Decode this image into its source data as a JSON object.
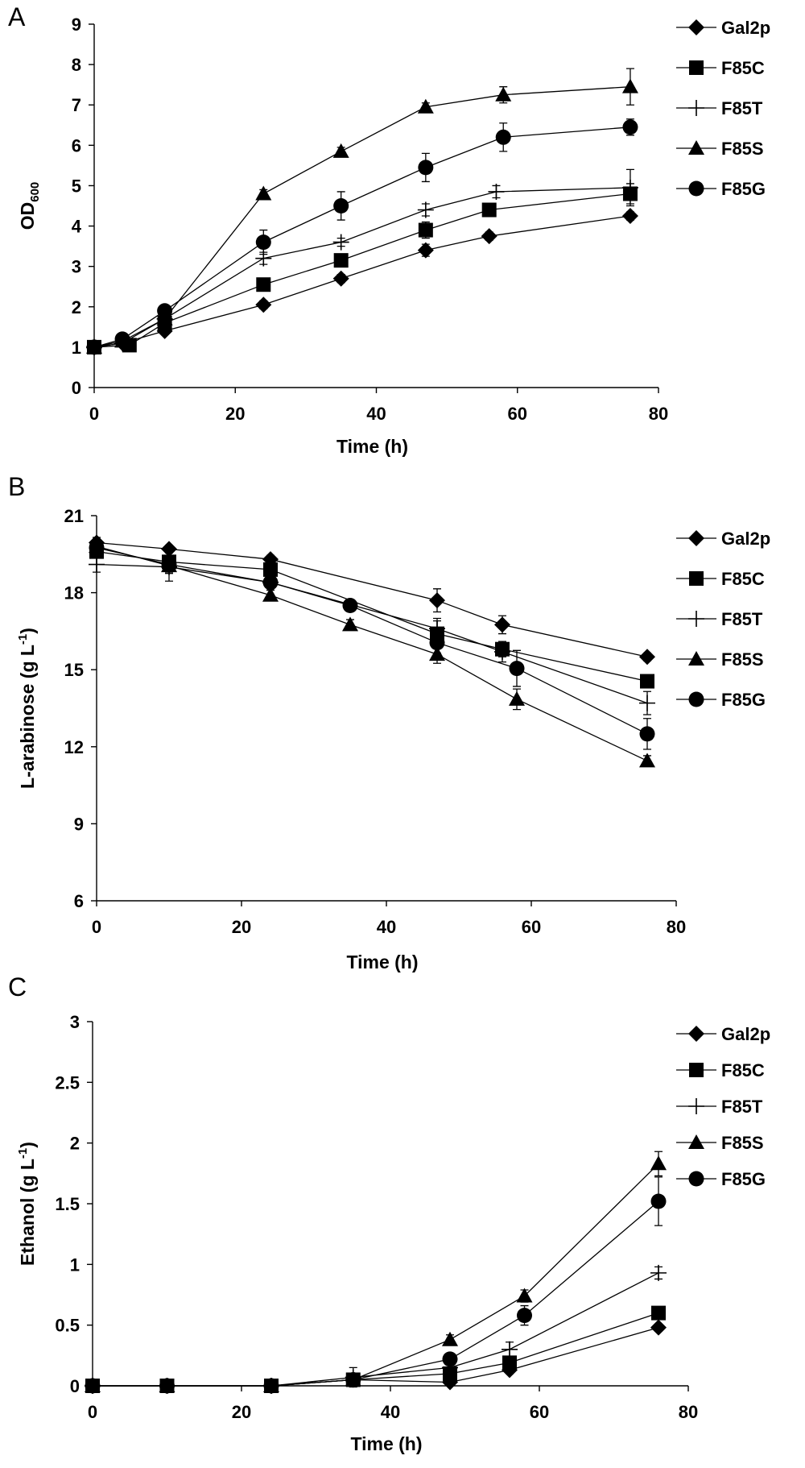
{
  "chart_data": [
    {
      "panel": "A",
      "type": "line",
      "title": "",
      "xlabel": "Time (h)",
      "ylabel": "OD",
      "ylabel_sub": "600",
      "xlim": [
        0,
        80
      ],
      "ylim": [
        0,
        9
      ],
      "xticks": [
        0,
        20,
        40,
        60,
        80
      ],
      "yticks": [
        0,
        1,
        2,
        3,
        4,
        5,
        6,
        7,
        8,
        9
      ],
      "legend": "top-right",
      "series": [
        {
          "name": "Gal2p",
          "marker": "diamond",
          "x": [
            0,
            4,
            10,
            24,
            35,
            47,
            56,
            76
          ],
          "y": [
            1.0,
            1.1,
            1.4,
            2.05,
            2.7,
            3.4,
            3.75,
            4.25
          ],
          "err": [
            0.05,
            0.05,
            0.05,
            0.1,
            0.1,
            0.15,
            0.1,
            0.1
          ]
        },
        {
          "name": "F85C",
          "marker": "square",
          "x": [
            0,
            5,
            10,
            24,
            35,
            47,
            56,
            76
          ],
          "y": [
            1.0,
            1.05,
            1.6,
            2.55,
            3.15,
            3.9,
            4.4,
            4.8
          ],
          "err": [
            0.05,
            0.05,
            0.1,
            0.1,
            0.15,
            0.2,
            0.15,
            0.25
          ]
        },
        {
          "name": "F85T",
          "marker": "plus",
          "x": [
            0,
            4,
            10,
            24,
            35,
            47,
            57,
            76
          ],
          "y": [
            1.0,
            1.1,
            1.7,
            3.2,
            3.6,
            4.4,
            4.85,
            4.95
          ],
          "err": [
            0.05,
            0.05,
            0.1,
            0.15,
            0.1,
            0.15,
            0.15,
            0.45
          ]
        },
        {
          "name": "F85S",
          "marker": "triangle",
          "x": [
            0,
            4,
            10,
            24,
            35,
            47,
            58,
            76
          ],
          "y": [
            1.0,
            1.15,
            1.7,
            4.8,
            5.85,
            6.95,
            7.25,
            7.45
          ],
          "err": [
            0.05,
            0.05,
            0.1,
            0.1,
            0.1,
            0.1,
            0.2,
            0.45
          ]
        },
        {
          "name": "F85G",
          "marker": "circle",
          "x": [
            0,
            4,
            10,
            24,
            35,
            47,
            58,
            76
          ],
          "y": [
            1.0,
            1.2,
            1.9,
            3.6,
            4.5,
            5.45,
            6.2,
            6.45
          ],
          "err": [
            0.05,
            0.05,
            0.1,
            0.3,
            0.35,
            0.35,
            0.35,
            0.2
          ]
        }
      ]
    },
    {
      "panel": "B",
      "type": "line",
      "title": "",
      "xlabel": "Time (h)",
      "ylabel": "L-arabinose (g L",
      "ylabel_sup": "-1",
      "ylabel_end": ")",
      "xlim": [
        0,
        80
      ],
      "ylim": [
        6,
        21
      ],
      "xticks": [
        0,
        20,
        40,
        60,
        80
      ],
      "yticks": [
        6,
        9,
        12,
        15,
        18,
        21
      ],
      "legend": "top-right",
      "series": [
        {
          "name": "Gal2p",
          "marker": "diamond",
          "x": [
            0,
            10,
            24,
            47,
            56,
            76
          ],
          "y": [
            19.95,
            19.7,
            19.3,
            17.7,
            16.75,
            15.5
          ],
          "err": [
            0.2,
            0.15,
            0.15,
            0.45,
            0.35,
            0.15
          ]
        },
        {
          "name": "F85C",
          "marker": "square",
          "x": [
            0,
            10,
            24,
            47,
            56,
            76
          ],
          "y": [
            19.6,
            19.2,
            18.9,
            16.4,
            15.8,
            14.55
          ],
          "err": [
            0.25,
            0.25,
            0.2,
            0.5,
            0.3,
            0.2
          ]
        },
        {
          "name": "F85T",
          "marker": "plus",
          "x": [
            0,
            10,
            24,
            47,
            56,
            76
          ],
          "y": [
            19.1,
            19.0,
            18.4,
            16.6,
            15.7,
            13.7
          ],
          "err": [
            0.3,
            0.55,
            0.2,
            0.4,
            0.4,
            0.45
          ]
        },
        {
          "name": "F85S",
          "marker": "triangle",
          "x": [
            0,
            10,
            24,
            35,
            47,
            58,
            76
          ],
          "y": [
            19.8,
            19.05,
            17.9,
            16.75,
            15.6,
            13.85,
            11.45
          ],
          "err": [
            0.25,
            0.3,
            0.2,
            0.2,
            0.35,
            0.4,
            0.2
          ]
        },
        {
          "name": "F85G",
          "marker": "circle",
          "x": [
            0,
            10,
            24,
            35,
            47,
            58,
            76
          ],
          "y": [
            19.75,
            19.1,
            18.4,
            17.5,
            16.05,
            15.05,
            12.5
          ],
          "err": [
            0.25,
            0.3,
            0.3,
            0.2,
            0.4,
            0.7,
            0.6
          ]
        }
      ]
    },
    {
      "panel": "C",
      "type": "line",
      "title": "",
      "xlabel": "Time (h)",
      "ylabel": "Ethanol (g L",
      "ylabel_sup": "-1",
      "ylabel_end": ")",
      "xlim": [
        0,
        80
      ],
      "ylim": [
        0,
        3
      ],
      "xticks": [
        0,
        20,
        40,
        60,
        80
      ],
      "yticks": [
        "0",
        "0.5",
        "1",
        "1.5",
        "2",
        "2.5",
        "3"
      ],
      "legend": "top-right",
      "series": [
        {
          "name": "Gal2p",
          "marker": "diamond",
          "x": [
            0,
            10,
            24,
            35,
            48,
            56,
            76
          ],
          "y": [
            0,
            0,
            0,
            0.05,
            0.03,
            0.13,
            0.48
          ],
          "err": [
            0.01,
            0.01,
            0.01,
            0.02,
            0.02,
            0.03,
            0.03
          ]
        },
        {
          "name": "F85C",
          "marker": "square",
          "x": [
            0,
            10,
            24,
            35,
            48,
            56,
            76
          ],
          "y": [
            0,
            0,
            0,
            0.05,
            0.1,
            0.19,
            0.6
          ],
          "err": [
            0.01,
            0.01,
            0.01,
            0.03,
            0.03,
            0.05,
            0.04
          ]
        },
        {
          "name": "F85T",
          "marker": "plus",
          "x": [
            0,
            10,
            24,
            35,
            48,
            56,
            76
          ],
          "y": [
            0,
            0,
            0,
            0.07,
            0.15,
            0.3,
            0.93
          ],
          "err": [
            0.01,
            0.01,
            0.01,
            0.08,
            0.04,
            0.06,
            0.05
          ]
        },
        {
          "name": "F85S",
          "marker": "triangle",
          "x": [
            0,
            10,
            24,
            35,
            48,
            58,
            76
          ],
          "y": [
            0,
            0,
            0,
            0.05,
            0.38,
            0.74,
            1.83
          ],
          "err": [
            0.01,
            0.01,
            0.01,
            0.03,
            0.04,
            0.05,
            0.1
          ]
        },
        {
          "name": "F85G",
          "marker": "circle",
          "x": [
            0,
            10,
            24,
            35,
            48,
            58,
            76
          ],
          "y": [
            0,
            0,
            0,
            0.05,
            0.22,
            0.58,
            1.52
          ],
          "err": [
            0.01,
            0.01,
            0.01,
            0.03,
            0.04,
            0.08,
            0.2
          ]
        }
      ]
    }
  ]
}
